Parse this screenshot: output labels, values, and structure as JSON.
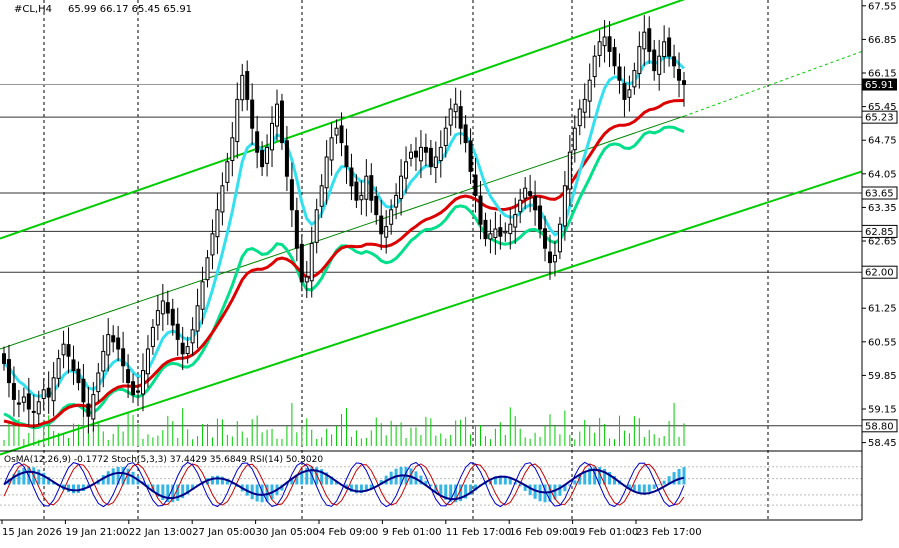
{
  "header": {
    "symbol_label": "#CL,H4",
    "ohlc": "65.99 66.17 65.45 65.91"
  },
  "indicator_header": "OsMA(12,26,9) -0.1772  Stoch(5,3,3) 37.4429 35.6849  RSI(14) 50.3020",
  "colors": {
    "background": "#ffffff",
    "candle": "#000000",
    "channel": "#00cc00",
    "ema_fast": "#33e0f0",
    "ema_mid": "#00e08a",
    "ema_slow": "#dd0000",
    "volume": "#00cc00",
    "osma": "#33b5e5",
    "stoch_main": "#0000cc",
    "stoch_signal": "#cc0000",
    "rsi": "#000088",
    "grid": "#000000"
  },
  "chart_data": {
    "type": "candlestick",
    "symbol": "#CL",
    "timeframe": "H4",
    "last": {
      "open": 65.99,
      "high": 66.17,
      "low": 65.45,
      "close": 65.91
    },
    "price_axis": {
      "ticks": [
        "67.55",
        "66.85",
        "66.15",
        "65.45",
        "64.75",
        "64.05",
        "63.35",
        "62.65",
        "61.95",
        "61.25",
        "60.55",
        "59.85",
        "59.15",
        "58.45"
      ],
      "range": [
        58.4,
        67.65
      ]
    },
    "time_axis": {
      "labels": [
        "15 Jan 2026",
        "19 Jan 21:00",
        "22 Jan 13:00",
        "27 Jan 05:00",
        "30 Jan 05:00",
        "4 Feb 09:00",
        "9 Feb 01:00",
        "11 Feb 17:00",
        "16 Feb 09:00",
        "19 Feb 01:00",
        "23 Feb 17:00"
      ]
    },
    "levels": [
      {
        "value": 65.91,
        "label": "65.91",
        "style": "current-price"
      },
      {
        "value": 65.23,
        "label": "65.23",
        "style": "boxed"
      },
      {
        "value": 63.65,
        "label": "63.65",
        "style": "boxed"
      },
      {
        "value": 62.85,
        "label": "62.85",
        "style": "boxed"
      },
      {
        "value": 62.0,
        "label": "62.00",
        "style": "boxed"
      },
      {
        "value": 58.8,
        "label": "58.80",
        "style": "boxed"
      }
    ],
    "closes": [
      60.1,
      59.7,
      59.35,
      59.25,
      59.4,
      59.15,
      59.1,
      59.3,
      59.55,
      59.4,
      59.8,
      60.2,
      60.5,
      60.25,
      59.95,
      59.7,
      59.3,
      59.0,
      59.45,
      59.9,
      60.35,
      60.7,
      60.55,
      60.4,
      60.05,
      59.7,
      59.45,
      59.5,
      59.95,
      60.4,
      60.85,
      61.2,
      61.4,
      61.15,
      60.9,
      60.6,
      60.3,
      60.45,
      60.8,
      61.3,
      61.8,
      62.3,
      62.8,
      63.3,
      63.8,
      64.3,
      64.8,
      65.6,
      66.1,
      65.6,
      65.0,
      64.5,
      64.2,
      64.6,
      65.1,
      65.5,
      64.7,
      64.0,
      63.3,
      62.5,
      61.8,
      61.9,
      62.6,
      63.3,
      63.8,
      64.4,
      64.8,
      65.0,
      64.7,
      64.2,
      63.8,
      63.5,
      63.6,
      64.0,
      63.5,
      63.2,
      62.8,
      62.95,
      63.3,
      63.6,
      64.0,
      64.3,
      64.5,
      64.4,
      64.6,
      64.5,
      64.2,
      64.4,
      64.6,
      65.0,
      65.4,
      65.5,
      65.0,
      64.7,
      64.1,
      63.6,
      63.0,
      62.7,
      62.8,
      62.9,
      62.75,
      62.85,
      63.0,
      63.2,
      63.5,
      63.75,
      63.6,
      63.3,
      62.9,
      62.5,
      62.2,
      62.35,
      63.0,
      63.8,
      64.5,
      65.0,
      65.4,
      65.6,
      66.0,
      66.5,
      66.8,
      66.9,
      66.6,
      66.3,
      66.0,
      65.6,
      65.8,
      66.2,
      66.7,
      67.0,
      66.6,
      66.2,
      66.5,
      66.8,
      66.5,
      66.3,
      66.0,
      65.91
    ]
  }
}
